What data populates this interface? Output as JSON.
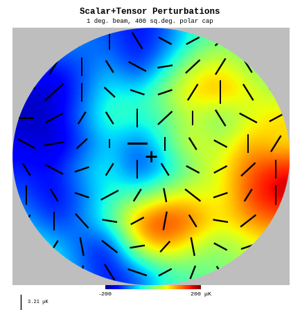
{
  "chart_data": {
    "type": "heatmap",
    "title": "Scalar+Tensor Perturbations",
    "subtitle": "1 deg. beam, 400 sq.deg. polar cap",
    "tick_labels": false,
    "color": "jet",
    "cells": [
      [
        -60,
        -80,
        -100,
        -120,
        -150,
        -120,
        -40,
        0,
        -20,
        -40
      ],
      [
        -120,
        -150,
        -120,
        -80,
        -150,
        -60,
        40,
        60,
        20,
        -20
      ],
      [
        -170,
        -180,
        -120,
        -40,
        -60,
        20,
        80,
        100,
        60,
        20
      ],
      [
        -180,
        -170,
        -100,
        -20,
        -40,
        -20,
        40,
        -20,
        40,
        80
      ],
      [
        -160,
        -180,
        -130,
        -60,
        -120,
        -30,
        60,
        20,
        100,
        60
      ],
      [
        -140,
        -150,
        -80,
        -40,
        -140,
        -80,
        0,
        60,
        120,
        160
      ],
      [
        -120,
        -160,
        -110,
        -40,
        -20,
        40,
        60,
        40,
        140,
        180
      ],
      [
        -80,
        -140,
        -100,
        -20,
        120,
        160,
        120,
        60,
        100,
        120
      ],
      [
        -40,
        -60,
        -120,
        -160,
        60,
        100,
        40,
        0,
        40,
        60
      ],
      [
        -20,
        -40,
        -100,
        -150,
        -120,
        -40,
        -20,
        0,
        20,
        20
      ]
    ],
    "polarization_angle": [
      [
        20,
        30,
        60,
        90,
        120,
        150,
        30,
        45,
        60,
        90
      ],
      [
        40,
        60,
        90,
        120,
        150,
        10,
        45,
        60,
        120,
        135
      ],
      [
        30,
        45,
        90,
        135,
        160,
        20,
        60,
        90,
        120,
        150
      ],
      [
        0,
        30,
        60,
        120,
        90,
        45,
        90,
        120,
        150,
        30
      ],
      [
        150,
        10,
        45,
        90,
        0,
        90,
        120,
        150,
        90,
        60
      ],
      [
        120,
        150,
        20,
        60,
        90,
        120,
        150,
        30,
        45,
        90
      ],
      [
        90,
        120,
        160,
        30,
        60,
        100,
        140,
        20,
        60,
        90
      ],
      [
        60,
        90,
        130,
        170,
        30,
        80,
        120,
        170,
        40,
        80
      ],
      [
        30,
        60,
        100,
        140,
        10,
        50,
        100,
        150,
        20,
        60
      ],
      [
        10,
        40,
        80,
        120,
        160,
        30,
        70,
        120,
        160,
        30
      ]
    ],
    "polarization_amplitude": [
      [
        2,
        3,
        3,
        4,
        4,
        3,
        3,
        3,
        2,
        2
      ],
      [
        3,
        4,
        4,
        3,
        4,
        3,
        4,
        4,
        3,
        3
      ],
      [
        4,
        5,
        4,
        3,
        3,
        3,
        4,
        5,
        4,
        3
      ],
      [
        3,
        4,
        3,
        3,
        4,
        4,
        3,
        4,
        4,
        3
      ],
      [
        4,
        4,
        3,
        2,
        4,
        3,
        3,
        3,
        4,
        4
      ],
      [
        3,
        4,
        3,
        3,
        4,
        3,
        3,
        3,
        4,
        4
      ],
      [
        4,
        3,
        3,
        4,
        3,
        3,
        4,
        3,
        3,
        4
      ],
      [
        3,
        4,
        4,
        3,
        3,
        4,
        3,
        3,
        4,
        3
      ],
      [
        3,
        3,
        4,
        4,
        3,
        3,
        4,
        3,
        3,
        3
      ],
      [
        2,
        3,
        3,
        4,
        4,
        3,
        3,
        3,
        2,
        2
      ]
    ],
    "polarization_scale": {
      "value": 3.21,
      "label": "3.21 μK"
    },
    "colorbar": {
      "range": [
        -200,
        200
      ],
      "ticks": [
        -200,
        {
          "value": 200,
          "label": "200 μK"
        }
      ]
    }
  }
}
